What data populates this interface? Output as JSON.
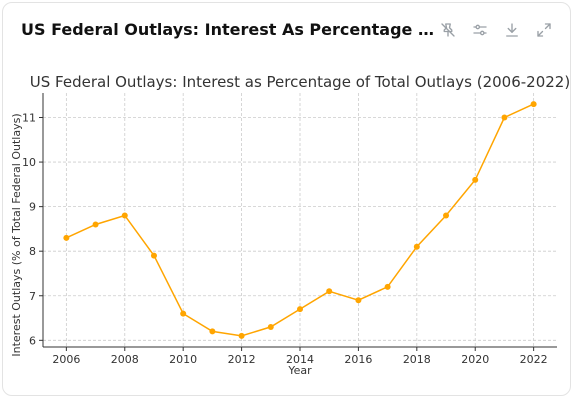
{
  "header": {
    "title": "US Federal Outlays: Interest As Percentage Of Total Outlays",
    "icons": [
      "pin-off-icon",
      "sliders-icon",
      "download-icon",
      "expand-icon"
    ]
  },
  "colors": {
    "series": "#FFA500",
    "grid": "#cccccc",
    "axis": "#333333"
  },
  "chart_data": {
    "type": "line",
    "title": "US Federal Outlays: Interest as Percentage of Total Outlays (2006-2022)",
    "xlabel": "Year",
    "ylabel": "Interest Outlays (% of Total Federal Outlays)",
    "x": [
      2006,
      2007,
      2008,
      2009,
      2010,
      2011,
      2012,
      2013,
      2014,
      2015,
      2016,
      2017,
      2018,
      2019,
      2020,
      2021,
      2022
    ],
    "values": [
      8.3,
      8.6,
      8.8,
      7.9,
      6.6,
      6.2,
      6.1,
      6.3,
      6.7,
      7.1,
      6.9,
      7.2,
      8.1,
      8.8,
      9.6,
      11.0,
      11.3
    ],
    "xticks": [
      2006,
      2008,
      2010,
      2012,
      2014,
      2016,
      2018,
      2020,
      2022
    ],
    "yticks": [
      6,
      7,
      8,
      9,
      10,
      11
    ],
    "xlim": [
      2005.2,
      2022.8
    ],
    "ylim": [
      5.85,
      11.55
    ],
    "grid": true
  }
}
